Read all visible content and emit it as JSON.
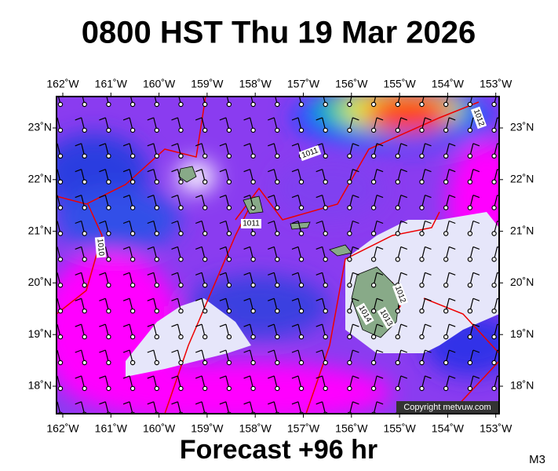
{
  "title": "0800 HST Thu 19 Mar 2026",
  "footer": "Forecast +96 hr",
  "model": "M3",
  "copyright": "Copyright metvuw.com",
  "longitudes": [
    "162˚W",
    "161˚W",
    "160˚W",
    "159˚W",
    "158˚W",
    "157˚W",
    "156˚W",
    "155˚W",
    "154˚W",
    "153˚W"
  ],
  "latitudes": [
    "23˚N",
    "22˚N",
    "21˚N",
    "20˚N",
    "19˚N",
    "18˚N"
  ],
  "isobar_labels": [
    "1012",
    "1011",
    "1011",
    "1010",
    "1012",
    "1014",
    "1013"
  ]
}
